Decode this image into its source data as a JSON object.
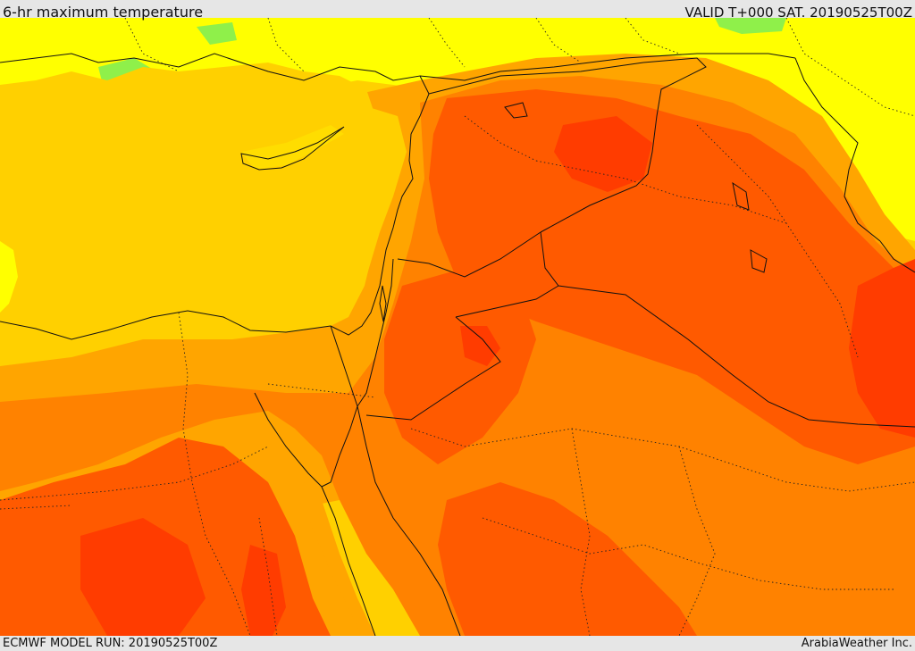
{
  "header": {
    "title": "6-hr maximum temperature",
    "valid": "VALID T+000 SAT. 20190525T00Z"
  },
  "footer": {
    "model_run": "ECMWF MODEL RUN: 20190525T00Z",
    "credit": "ArabiaWeather Inc."
  },
  "map": {
    "colors": {
      "lightgreen": "#8ff04a",
      "yellow": "#ffff00",
      "gold": "#ffd000",
      "amber": "#ffa500",
      "orange": "#ff8200",
      "dark_orange": "#ff5a00",
      "red_orange": "#ff3c00",
      "border": "#111111"
    }
  }
}
